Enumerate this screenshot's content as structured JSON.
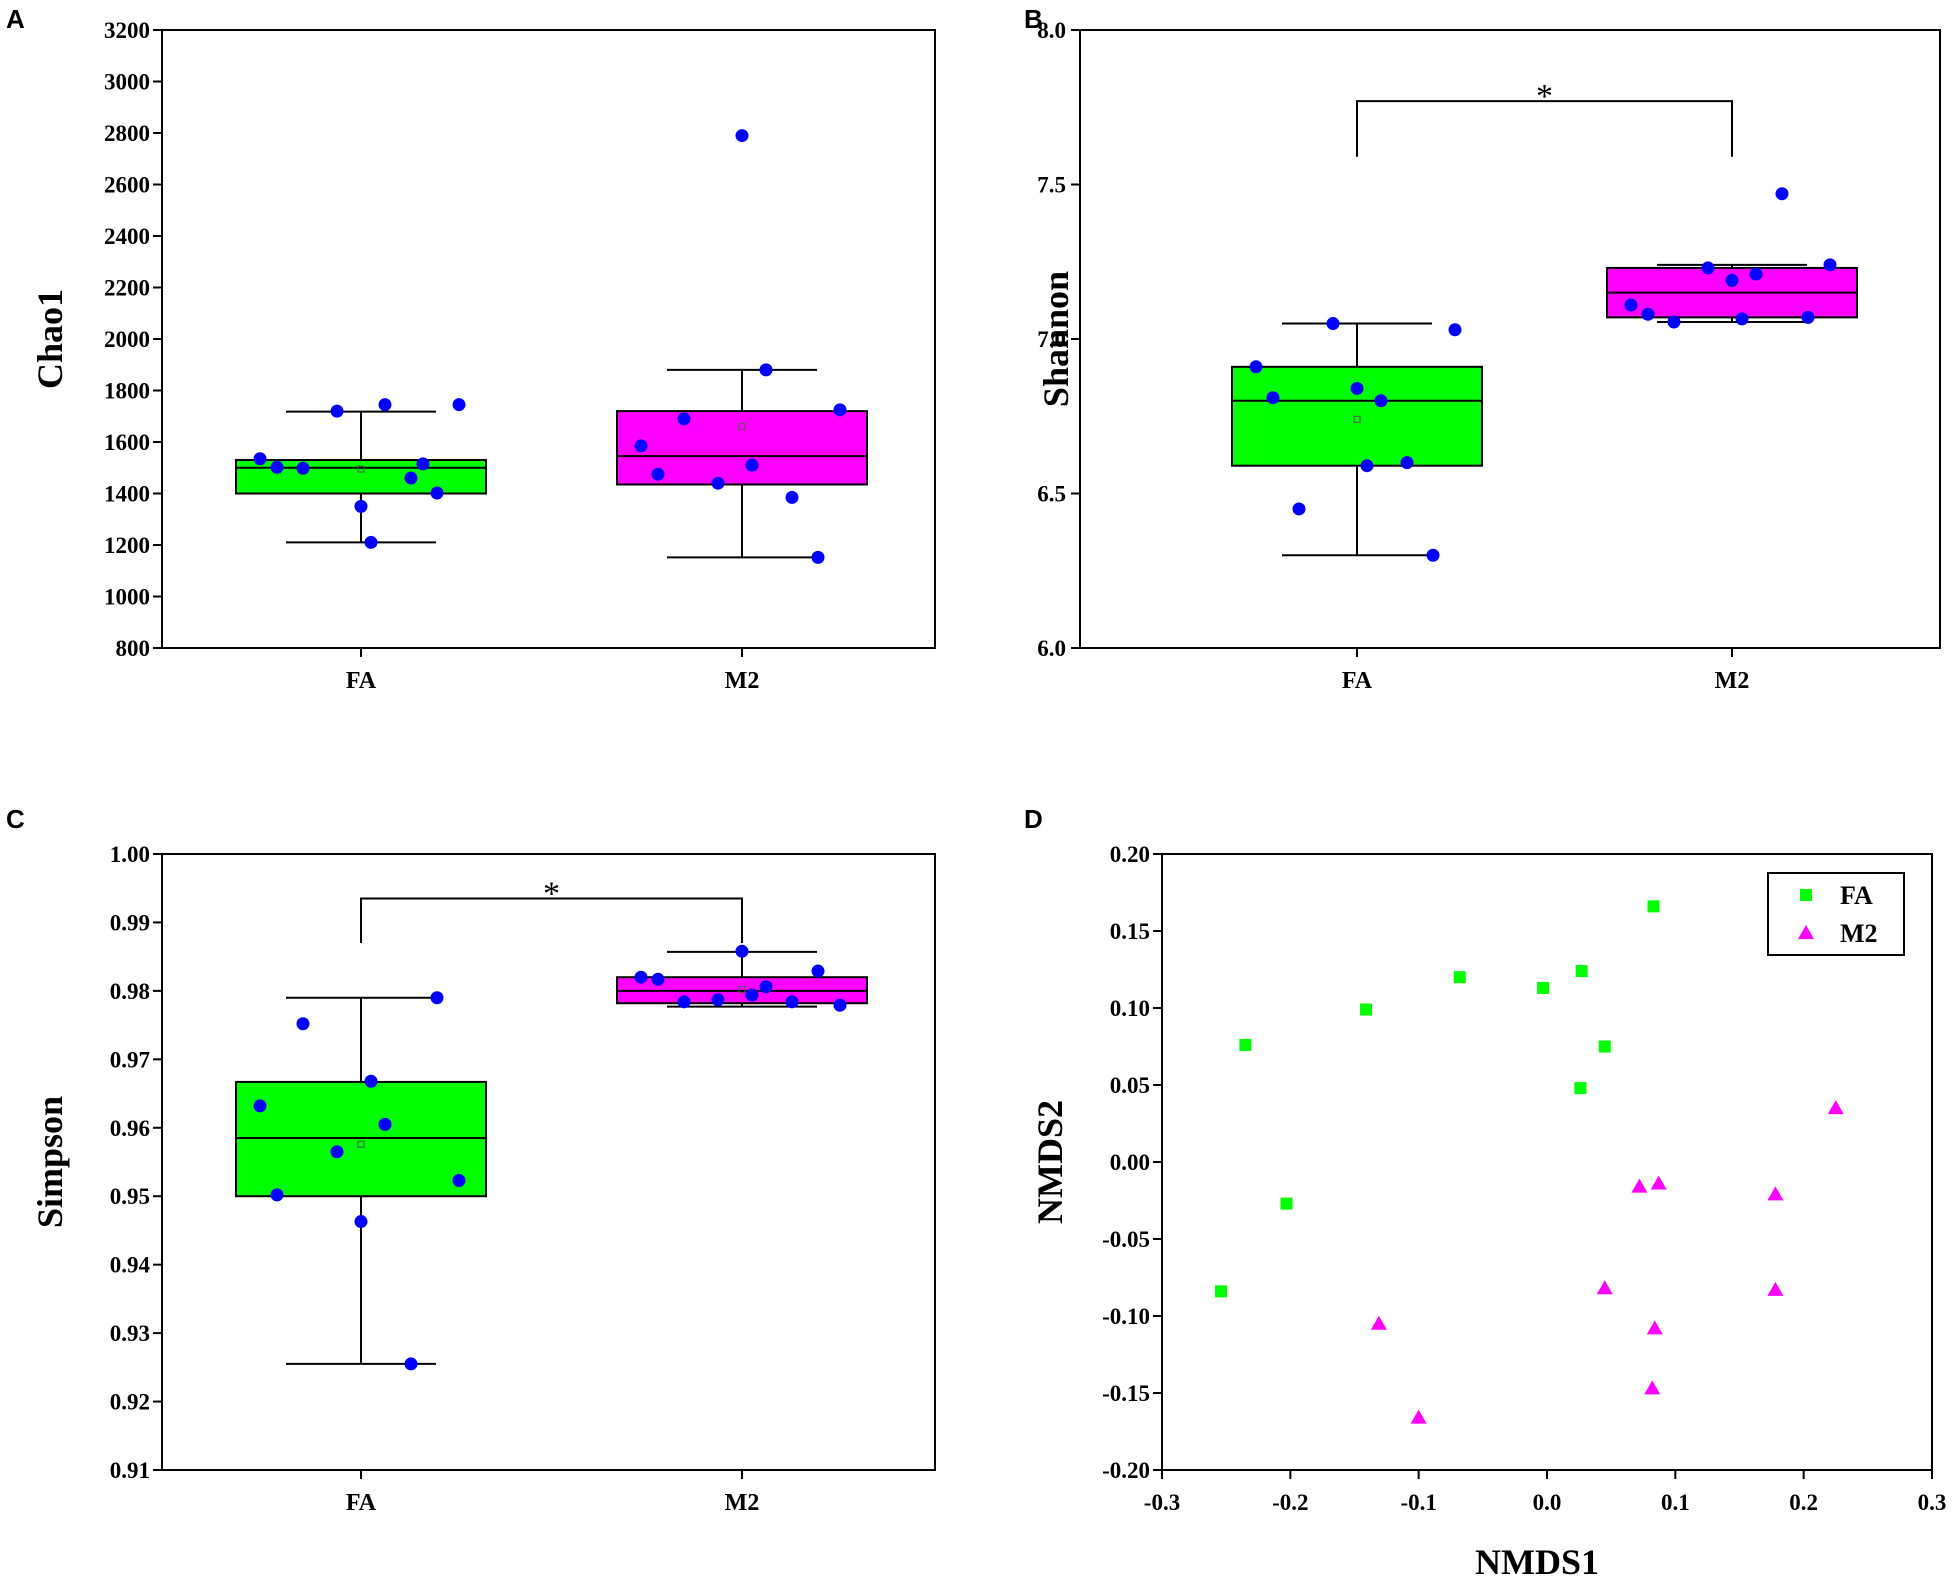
{
  "colors": {
    "fa": "#00ff00",
    "m2": "#ff00ff",
    "points": "#0000ff",
    "axis": "#000000"
  },
  "chart_data": [
    {
      "panel": "A",
      "type": "box",
      "title": "",
      "xlabel": "",
      "ylabel": "Chao1",
      "categories": [
        "FA",
        "M2"
      ],
      "ylim": [
        800,
        3200
      ],
      "yticks": [
        800,
        1000,
        1200,
        1400,
        1600,
        1800,
        2000,
        2200,
        2400,
        2600,
        2800,
        3000,
        3200
      ],
      "ytick_labels": [
        "800",
        "1000",
        "1200",
        "1400",
        "1600",
        "1800",
        "2000",
        "2200",
        "2400",
        "2600",
        "2800",
        "3000",
        "3200"
      ],
      "boxes": [
        {
          "name": "FA",
          "q1": 1400,
          "median": 1500,
          "q3": 1530,
          "whisker_low": 1210,
          "whisker_high": 1718,
          "mean": 1495,
          "points": [
            1535,
            1498,
            1720,
            1350,
            1745,
            1460,
            1402,
            1745,
            1502,
            1210,
            1515
          ]
        },
        {
          "name": "M2",
          "q1": 1435,
          "median": 1545,
          "q3": 1720,
          "whisker_low": 1152,
          "whisker_high": 1880,
          "mean": 1660,
          "points": [
            1585,
            1690,
            1440,
            2790,
            1880,
            1385,
            1152,
            1725,
            1475,
            1510
          ]
        }
      ],
      "significance": null
    },
    {
      "panel": "B",
      "type": "box",
      "title": "",
      "xlabel": "",
      "ylabel": "Shannon",
      "categories": [
        "FA",
        "M2"
      ],
      "ylim": [
        6.0,
        8.0
      ],
      "yticks": [
        6.0,
        6.5,
        7.0,
        7.5,
        8.0
      ],
      "ytick_labels": [
        "6.0",
        "6.5",
        "7.0",
        "7.5",
        "8.0"
      ],
      "boxes": [
        {
          "name": "FA",
          "q1": 6.59,
          "median": 6.8,
          "q3": 6.91,
          "whisker_low": 6.3,
          "whisker_high": 7.05,
          "mean": 6.74,
          "points": [
            6.91,
            6.45,
            7.05,
            6.84,
            6.8,
            6.6,
            6.3,
            7.03,
            6.81,
            6.59
          ]
        },
        {
          "name": "M2",
          "q1": 7.07,
          "median": 7.15,
          "q3": 7.23,
          "whisker_low": 7.055,
          "whisker_high": 7.24,
          "mean": 7.18,
          "points": [
            7.11,
            7.055,
            7.23,
            7.19,
            7.21,
            7.47,
            7.07,
            7.24,
            7.08,
            7.065
          ]
        }
      ],
      "significance": {
        "label": "*",
        "between": [
          "FA",
          "M2"
        ],
        "y": 7.77,
        "drop_to": [
          7.59,
          7.59
        ]
      }
    },
    {
      "panel": "C",
      "type": "box",
      "title": "",
      "xlabel": "",
      "ylabel": "Simpson",
      "categories": [
        "FA",
        "M2"
      ],
      "ylim": [
        0.91,
        1.0
      ],
      "yticks": [
        0.91,
        0.92,
        0.93,
        0.94,
        0.95,
        0.96,
        0.97,
        0.98,
        0.99,
        1.0
      ],
      "ytick_labels": [
        "0.91",
        "0.92",
        "0.93",
        "0.94",
        "0.95",
        "0.96",
        "0.97",
        "0.98",
        "0.99",
        "1.00"
      ],
      "boxes": [
        {
          "name": "FA",
          "q1": 0.95,
          "median": 0.9585,
          "q3": 0.9667,
          "whisker_low": 0.9255,
          "whisker_high": 0.979,
          "mean": 0.9576,
          "points": [
            0.9632,
            0.9752,
            0.9565,
            0.9463,
            0.9605,
            0.9255,
            0.979,
            0.9523,
            0.9502,
            0.9668
          ]
        },
        {
          "name": "M2",
          "q1": 0.9782,
          "median": 0.98,
          "q3": 0.982,
          "whisker_low": 0.9777,
          "whisker_high": 0.9857,
          "mean": 0.9802,
          "points": [
            0.982,
            0.9784,
            0.9787,
            0.9858,
            0.9806,
            0.9784,
            0.9829,
            0.9779,
            0.9817,
            0.9794
          ]
        }
      ],
      "significance": {
        "label": "*",
        "between": [
          "FA",
          "M2"
        ],
        "y": 0.9935,
        "drop_to": [
          0.987,
          0.987
        ]
      }
    },
    {
      "panel": "D",
      "type": "scatter",
      "title": "",
      "xlabel": "NMDS1",
      "ylabel": "NMDS2",
      "xlim": [
        -0.3,
        0.3
      ],
      "ylim": [
        -0.2,
        0.2
      ],
      "xticks": [
        -0.3,
        -0.2,
        -0.1,
        0.0,
        0.1,
        0.2,
        0.3
      ],
      "xtick_labels": [
        "-0.3",
        "-0.2",
        "-0.1",
        "0.0",
        "0.1",
        "0.2",
        "0.3"
      ],
      "yticks": [
        -0.2,
        -0.15,
        -0.1,
        -0.05,
        0.0,
        0.05,
        0.1,
        0.15,
        0.2
      ],
      "ytick_labels": [
        "-0.20",
        "-0.15",
        "-0.10",
        "-0.05",
        "0.00",
        "0.05",
        "0.10",
        "0.15",
        "0.20"
      ],
      "legend_position": "top-right",
      "series": [
        {
          "name": "FA",
          "marker": "square",
          "x": [
            0.083,
            0.027,
            -0.068,
            -0.003,
            -0.141,
            0.045,
            -0.235,
            0.026,
            -0.203,
            -0.254
          ],
          "y": [
            0.166,
            0.124,
            0.12,
            0.113,
            0.099,
            0.075,
            0.076,
            0.048,
            -0.027,
            -0.084
          ]
        },
        {
          "name": "M2",
          "marker": "triangle",
          "x": [
            0.225,
            0.087,
            0.072,
            0.178,
            0.045,
            0.178,
            -0.131,
            0.084,
            0.082,
            -0.1
          ],
          "y": [
            0.035,
            -0.014,
            -0.016,
            -0.021,
            -0.082,
            -0.083,
            -0.105,
            -0.108,
            -0.147,
            -0.166
          ]
        }
      ]
    }
  ]
}
